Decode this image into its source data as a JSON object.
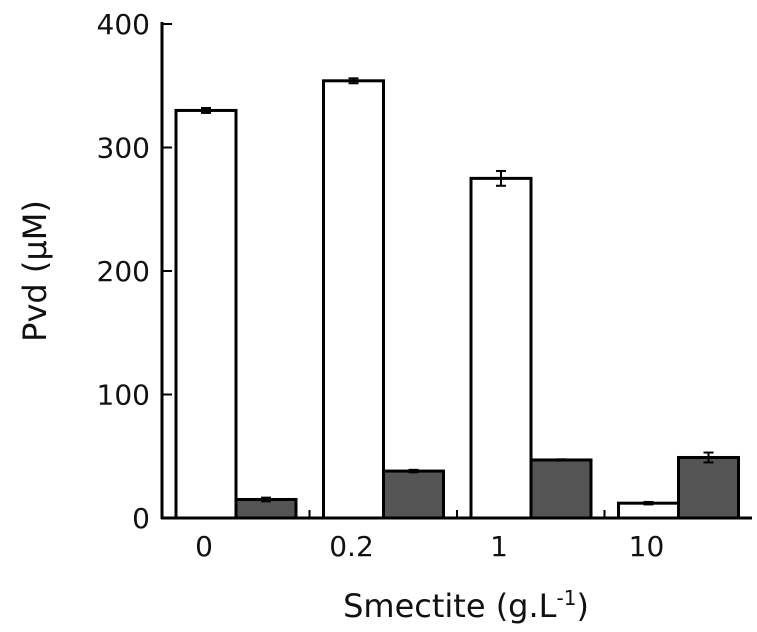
{
  "chart_data": {
    "type": "bar",
    "categories": [
      "0",
      "0.2",
      "1",
      "10"
    ],
    "series": [
      {
        "values": [
          330,
          354,
          275,
          12
        ],
        "errors": [
          2,
          2,
          6,
          1
        ],
        "color": "#ffffff"
      },
      {
        "values": [
          15,
          38,
          47,
          49
        ],
        "errors": [
          1.5,
          1,
          0.5,
          4
        ],
        "color": "#545454"
      }
    ],
    "ylabel": "Pvd (µM)",
    "xlabel": {
      "base": "Smectite (g.L",
      "superscript": "-1",
      "close": ")"
    },
    "ylim": [
      0,
      400
    ],
    "yticks": [
      "0",
      "100",
      "200",
      "300",
      "400"
    ],
    "grid": false,
    "legend": "none"
  }
}
